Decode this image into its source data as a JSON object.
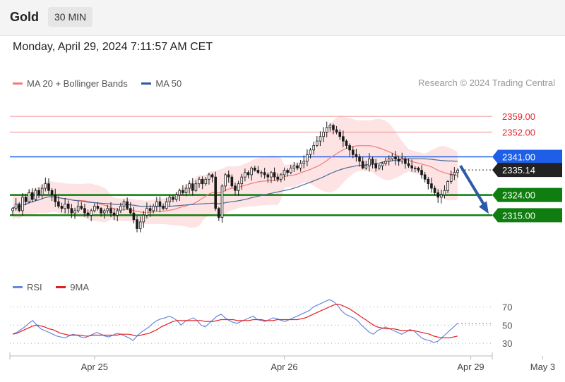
{
  "header": {
    "instrument": "Gold",
    "timeframe": "30 MIN"
  },
  "datetime": "Monday, April 29, 2024 7:11:57 AM CET",
  "legend": {
    "ma20_label": "MA 20 + Bollinger Bands",
    "ma50_label": "MA 50",
    "credit": "Research © 2024 Trading Central"
  },
  "rsi_legend": {
    "rsi_label": "RSI",
    "ma_label": "9MA"
  },
  "colors": {
    "candle": "#1a1a1a",
    "bollinger_fill": "#fcd9d9",
    "ma20": "#f47a7a",
    "ma50": "#4a6a9a",
    "resistance": "#e8252a",
    "resistance_line": "#f09090",
    "pivot_blue": "#1e5fe8",
    "support": "#0f7d0f",
    "arrow": "#2a5aa8",
    "rsi": "#6688dd",
    "rsi_ma": "#e02020",
    "current": "#222222"
  },
  "chart_data": {
    "type": "candlestick",
    "y_range": [
      2290,
      2370
    ],
    "levels": [
      {
        "value": 2359.0,
        "label": "2359.00",
        "kind": "resistance"
      },
      {
        "value": 2352.0,
        "label": "2352.00",
        "kind": "resistance"
      },
      {
        "value": 2341.0,
        "label": "2341.00",
        "kind": "pivot"
      },
      {
        "value": 2335.14,
        "label": "2335.14",
        "kind": "current"
      },
      {
        "value": 2324.0,
        "label": "2324.00",
        "kind": "support"
      },
      {
        "value": 2315.0,
        "label": "2315.00",
        "kind": "support"
      }
    ],
    "forecast_arrow": {
      "from": 2337,
      "to": 2315
    },
    "x_ticks": [
      {
        "label": "Apr 25",
        "index": 25
      },
      {
        "label": "Apr 26",
        "index": 83
      },
      {
        "label": "Apr 29",
        "index": 140
      },
      {
        "label": "May 3",
        "index": 162
      }
    ],
    "close": [
      2318,
      2320,
      2317,
      2323,
      2321,
      2325,
      2322,
      2326,
      2324,
      2327,
      2329,
      2326,
      2324,
      2321,
      2319,
      2318,
      2320,
      2318,
      2316,
      2317,
      2319,
      2318,
      2316,
      2315,
      2317,
      2319,
      2318,
      2316,
      2317,
      2318,
      2316,
      2315,
      2317,
      2319,
      2321,
      2318,
      2316,
      2313,
      2309,
      2312,
      2315,
      2318,
      2317,
      2319,
      2321,
      2319,
      2318,
      2321,
      2323,
      2322,
      2324,
      2326,
      2325,
      2327,
      2329,
      2326,
      2329,
      2331,
      2329,
      2331,
      2333,
      2332,
      2318,
      2314,
      2328,
      2333,
      2332,
      2328,
      2326,
      2329,
      2332,
      2334,
      2333,
      2336,
      2335,
      2334,
      2334,
      2333,
      2332,
      2334,
      2332,
      2331,
      2333,
      2335,
      2334,
      2336,
      2337,
      2336,
      2338,
      2339,
      2342,
      2344,
      2346,
      2348,
      2350,
      2352,
      2354,
      2355,
      2353,
      2352,
      2350,
      2348,
      2346,
      2344,
      2342,
      2341,
      2339,
      2336,
      2337,
      2340,
      2338,
      2336,
      2337,
      2338,
      2339,
      2340,
      2341,
      2340,
      2339,
      2340,
      2338,
      2337,
      2336,
      2336,
      2335,
      2333,
      2331,
      2329,
      2327,
      2325,
      2323,
      2324,
      2326,
      2330,
      2333,
      2334,
      2335
    ],
    "rsi": {
      "y_ticks": [
        70,
        50,
        30
      ],
      "y_range": [
        20,
        82
      ],
      "rsi": [
        40,
        42,
        45,
        48,
        52,
        55,
        50,
        46,
        44,
        42,
        40,
        38,
        37,
        36,
        38,
        40,
        39,
        37,
        36,
        38,
        40,
        42,
        40,
        38,
        37,
        39,
        41,
        40,
        38,
        36,
        33,
        38,
        42,
        45,
        48,
        52,
        55,
        57,
        58,
        60,
        58,
        55,
        50,
        54,
        56,
        58,
        55,
        50,
        48,
        52,
        56,
        60,
        62,
        58,
        55,
        53,
        52,
        54,
        56,
        58,
        60,
        56,
        55,
        54,
        56,
        58,
        57,
        55,
        54,
        56,
        58,
        60,
        62,
        64,
        66,
        70,
        72,
        74,
        76,
        78,
        76,
        72,
        66,
        62,
        60,
        58,
        55,
        50,
        46,
        42,
        40,
        44,
        46,
        48,
        46,
        44,
        42,
        40,
        42,
        45,
        44,
        40,
        36,
        34,
        33,
        31,
        32,
        36,
        40,
        44,
        48,
        52
      ],
      "ma": [
        40,
        41,
        43,
        45,
        47,
        49,
        50,
        49,
        48,
        46,
        45,
        43,
        41,
        40,
        39,
        39,
        39,
        39,
        38,
        38,
        39,
        39,
        39,
        39,
        39,
        39,
        39,
        40,
        40,
        40,
        39,
        38,
        39,
        40,
        41,
        43,
        45,
        48,
        50,
        52,
        54,
        55,
        55,
        55,
        55,
        55,
        55,
        55,
        54,
        54,
        54,
        55,
        56,
        56,
        56,
        56,
        55,
        55,
        55,
        55,
        56,
        56,
        56,
        55,
        55,
        55,
        56,
        56,
        56,
        56,
        56,
        56,
        57,
        58,
        60,
        62,
        64,
        66,
        68,
        70,
        72,
        73,
        72,
        70,
        68,
        65,
        62,
        59,
        56,
        53,
        50,
        48,
        47,
        46,
        46,
        46,
        45,
        44,
        44,
        44,
        44,
        43,
        42,
        41,
        40,
        38,
        37,
        36,
        36,
        36,
        37,
        38
      ]
    }
  }
}
